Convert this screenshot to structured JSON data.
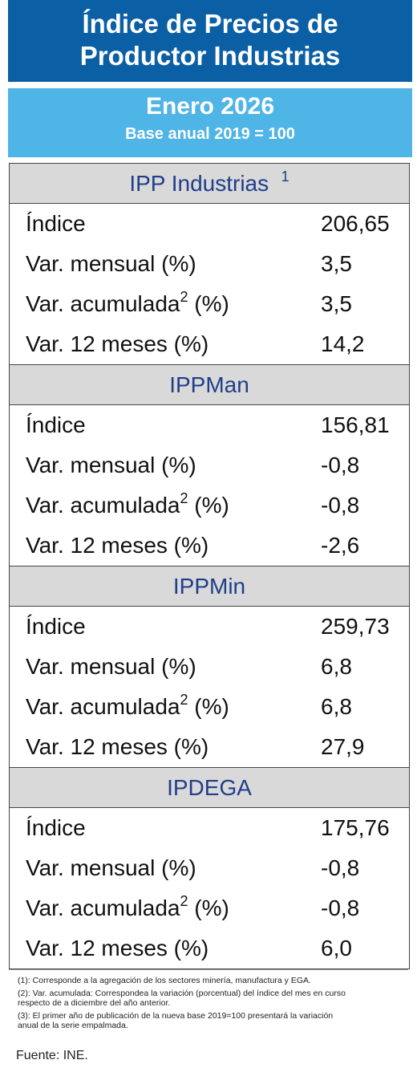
{
  "header": {
    "title_line1": "Índice de Precios de",
    "title_line2": "Productor Industrias"
  },
  "period": {
    "month": "Enero 2026",
    "base": "Base anual 2019 = 100"
  },
  "sections": [
    {
      "title": "IPP Industrias",
      "note": "1",
      "rows": [
        {
          "label": "Índice",
          "value": "206,65"
        },
        {
          "label": "Var. mensual (%)",
          "value": "3,5"
        },
        {
          "label": "Var. acumulada",
          "note": "2",
          "suffix": "(%)",
          "value": "3,5"
        },
        {
          "label": "Var. 12 meses (%)",
          "value": "14,2"
        }
      ]
    },
    {
      "title": "IPPMan",
      "rows": [
        {
          "label": "Índice",
          "value": "156,81"
        },
        {
          "label": "Var. mensual (%)",
          "value": "-0,8"
        },
        {
          "label": "Var. acumulada",
          "note": "2",
          "suffix": "(%)",
          "value": "-0,8"
        },
        {
          "label": "Var. 12 meses (%)",
          "value": "-2,6"
        }
      ]
    },
    {
      "title": "IPPMin",
      "rows": [
        {
          "label": "Índice",
          "value": "259,73"
        },
        {
          "label": "Var. mensual (%)",
          "value": "6,8"
        },
        {
          "label": "Var. acumulada",
          "note": "2",
          "suffix": "(%)",
          "value": "6,8"
        },
        {
          "label": "Var. 12 meses (%)",
          "value": "27,9"
        }
      ]
    },
    {
      "title": "IPDEGA",
      "rows": [
        {
          "label": "Índice",
          "value": "175,76"
        },
        {
          "label": "Var. mensual (%)",
          "value": "-0,8"
        },
        {
          "label": "Var. acumulada",
          "note": "2",
          "suffix": "(%)",
          "value": "-0,8"
        },
        {
          "label": "Var. 12 meses (%)",
          "value": "6,0"
        }
      ]
    }
  ],
  "footnotes": [
    "(1): Corresponde a la agregación de los sectores minería, manufactura y EGA.",
    "(2): Var. acumulada: Correspondea la variación (porcentual) del índice del mes en curso respecto de a diciembre del año anterior.",
    "(3): El primer año de publicación de la nueva base 2019=100 presentará la variación anual de la serie empalmada."
  ],
  "source": "Fuente: INE."
}
